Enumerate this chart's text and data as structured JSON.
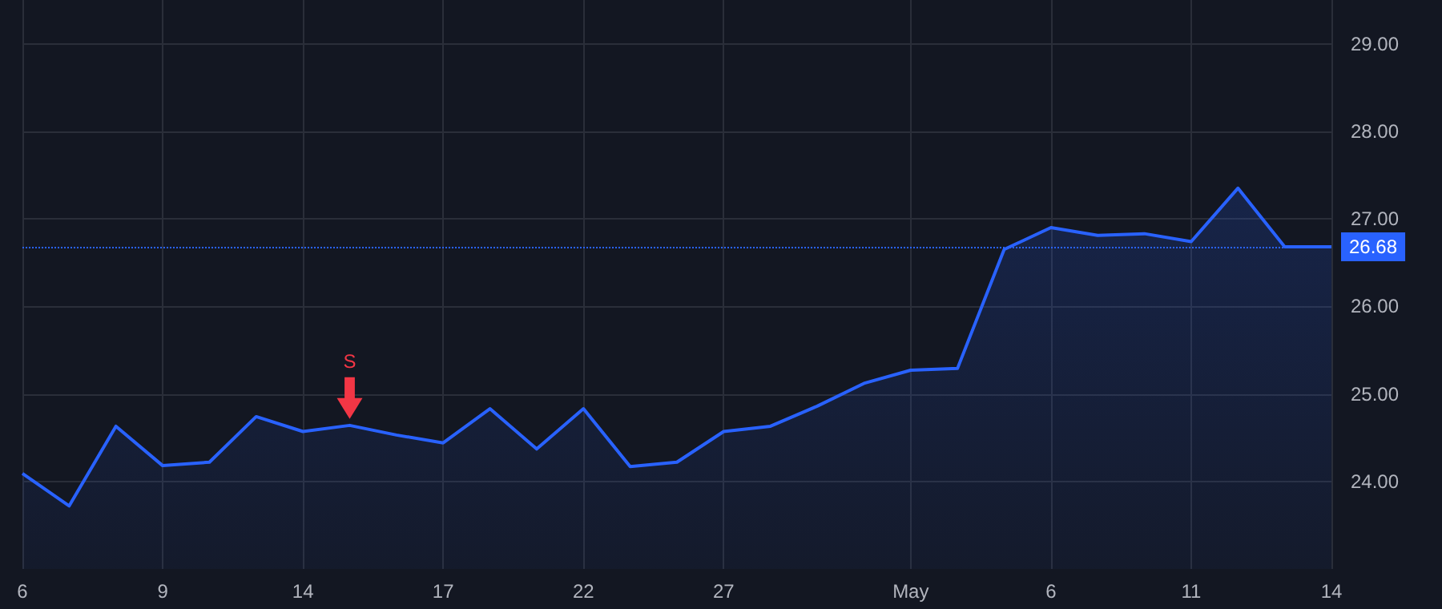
{
  "chart_data": {
    "type": "area",
    "categories": [
      "6",
      null,
      null,
      "9",
      null,
      null,
      "14",
      null,
      null,
      "17",
      null,
      null,
      "22",
      null,
      null,
      "27",
      null,
      null,
      null,
      "May",
      null,
      null,
      "6",
      null,
      null,
      "11",
      null,
      null,
      "14"
    ],
    "series": [
      {
        "color": "#2962ff",
        "values": [
          24.09,
          23.72,
          24.63,
          24.18,
          24.22,
          24.74,
          24.57,
          24.64,
          24.53,
          24.44,
          24.83,
          24.37,
          24.83,
          24.17,
          24.22,
          24.57,
          24.63,
          24.86,
          25.12,
          25.27,
          25.29,
          26.65,
          26.9,
          26.81,
          26.83,
          26.74,
          27.35,
          26.68,
          26.68
        ]
      }
    ],
    "ylim": [
      23.0,
      29.5
    ],
    "yticks": [
      {
        "value": 24,
        "label": "24.00"
      },
      {
        "value": 25,
        "label": "25.00"
      },
      {
        "value": 26,
        "label": "26.00"
      },
      {
        "value": 27,
        "label": "27.00"
      },
      {
        "value": 28,
        "label": "28.00"
      },
      {
        "value": 29,
        "label": "29.00"
      }
    ],
    "ref_lines": [
      {
        "axis": "y",
        "value": 26.68,
        "label": "26.68",
        "color": "#2962ff",
        "line_style": "dotted"
      }
    ],
    "annotations": [
      {
        "text": "S",
        "y": 24.64
      }
    ],
    "grid": true,
    "marker": "none"
  }
}
